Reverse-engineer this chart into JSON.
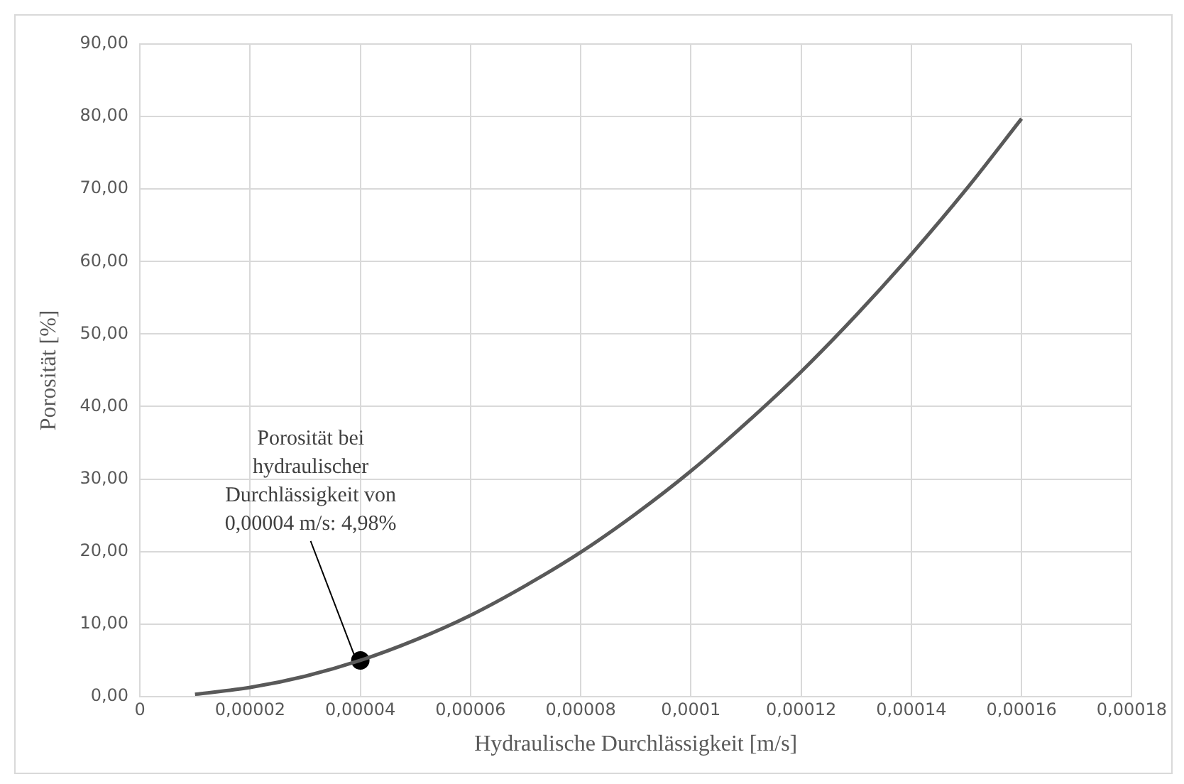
{
  "chart_data": {
    "type": "line",
    "xlabel": "Hydraulische Durchlässigkeit [m/s]",
    "ylabel": "Porosität [%]",
    "x": [
      1e-05,
      2e-05,
      3e-05,
      4e-05,
      5e-05,
      6e-05,
      7e-05,
      8e-05,
      9e-05,
      0.0001,
      0.00011,
      0.00012,
      0.00013,
      0.00014,
      0.00015,
      0.00016
    ],
    "series": [
      {
        "color": "#595959",
        "values": [
          0.31,
          1.25,
          2.8,
          4.98,
          7.8,
          11.2,
          15.3,
          19.9,
          25.2,
          31.1,
          37.7,
          44.8,
          52.6,
          61.0,
          70.0,
          79.7
        ]
      },
      {
        "type": "scatter",
        "color": "#000000",
        "marker": "circle",
        "x": [
          4e-05
        ],
        "values": [
          4.98
        ]
      }
    ],
    "xlim": [
      0,
      0.00018
    ],
    "xticks": [
      0,
      {
        "value": 2e-05,
        "label": "0,00002"
      },
      {
        "value": 4e-05,
        "label": "0,00004"
      },
      {
        "value": 6e-05,
        "label": "0,00006"
      },
      {
        "value": 8e-05,
        "label": "0,00008"
      },
      {
        "value": 0.0001,
        "label": "0,0001"
      },
      {
        "value": 0.00012,
        "label": "0,00012"
      },
      {
        "value": 0.00014,
        "label": "0,00014"
      },
      {
        "value": 0.00016,
        "label": "0,00016"
      },
      {
        "value": 0.00018,
        "label": "0,00018"
      }
    ],
    "ylim": [
      0,
      90
    ],
    "yticks": [
      {
        "value": 0,
        "label": "0,00"
      },
      {
        "value": 10,
        "label": "10,00"
      },
      {
        "value": 20,
        "label": "20,00"
      },
      {
        "value": 30,
        "label": "30,00"
      },
      {
        "value": 40,
        "label": "40,00"
      },
      {
        "value": 50,
        "label": "50,00"
      },
      {
        "value": 60,
        "label": "60,00"
      },
      {
        "value": 70,
        "label": "70,00"
      },
      {
        "value": 80,
        "label": "80,00"
      },
      {
        "value": 90,
        "label": "90,00"
      }
    ],
    "grid": true,
    "legend": false,
    "annotations": [
      {
        "text": "Porosität bei hydraulischer Durchlässigkeit von 0,00004 m/s: 4,98%",
        "x": 4e-05,
        "y": 4.98
      }
    ]
  }
}
